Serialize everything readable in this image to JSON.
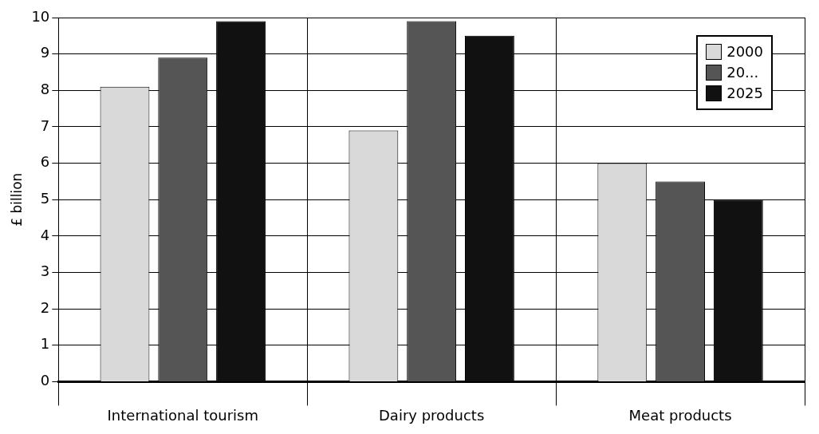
{
  "chart_data": {
    "type": "bar",
    "ylabel": "£ billion",
    "categories": [
      "International tourism",
      "Dairy products",
      "Meat products"
    ],
    "series": [
      {
        "name": "2000",
        "color": "#d9d9d9",
        "values": [
          8.1,
          6.9,
          6.0
        ]
      },
      {
        "name": "20...",
        "color": "#555555",
        "values": [
          8.9,
          9.9,
          5.5
        ]
      },
      {
        "name": "2025",
        "color": "#111111",
        "values": [
          9.9,
          9.5,
          5.0
        ]
      }
    ],
    "ylim": [
      0,
      10
    ],
    "yticks": [
      0,
      1,
      2,
      3,
      4,
      5,
      6,
      7,
      8,
      9,
      10
    ],
    "grid": true,
    "legend": "top right"
  }
}
